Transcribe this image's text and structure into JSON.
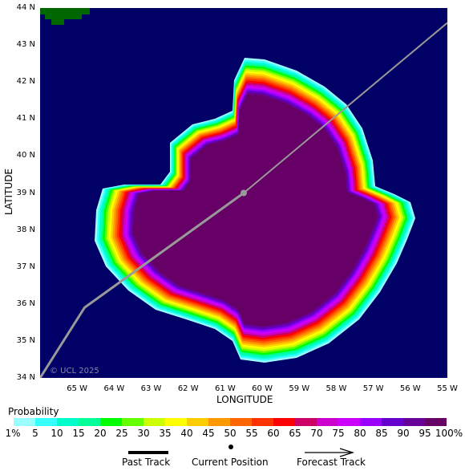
{
  "map": {
    "lat_ticks": [
      "44 N",
      "43 N",
      "42 N",
      "41 N",
      "40 N",
      "39 N",
      "38 N",
      "37 N",
      "36 N",
      "35 N",
      "34 N"
    ],
    "lon_ticks": [
      "65 W",
      "64 W",
      "63 W",
      "62 W",
      "61 W",
      "60 W",
      "59 W",
      "58 W",
      "57 W",
      "56 W",
      "55 W"
    ],
    "ylabel": "LATITUDE",
    "xlabel": "LONGITUDE",
    "watermark": "© UCL 2025",
    "colors": {
      "ocean": "#000066",
      "land": "#006600",
      "track": "#999999"
    },
    "lat_range": [
      34,
      44
    ],
    "lon_range": [
      -66,
      -55
    ]
  },
  "track": {
    "past": [
      [
        -66,
        34
      ],
      [
        -64.8,
        35.9
      ],
      [
        -60.5,
        39.0
      ]
    ],
    "forecast": [
      [
        -60.5,
        39.0
      ],
      [
        -55,
        43.6
      ]
    ],
    "current_position": [
      -60.5,
      39.0
    ]
  },
  "legend": {
    "title": "Probability",
    "labels": [
      "1%",
      "5",
      "10",
      "15",
      "20",
      "25",
      "30",
      "35",
      "40",
      "45",
      "50",
      "55",
      "60",
      "65",
      "70",
      "75",
      "80",
      "85",
      "90",
      "95",
      "100%"
    ],
    "colors": [
      "#99ffff",
      "#33ffff",
      "#00ffcc",
      "#00ff99",
      "#00ff00",
      "#66ff00",
      "#ccff00",
      "#ffff00",
      "#ffcc00",
      "#ff9900",
      "#ff6600",
      "#ff3300",
      "#ff0000",
      "#cc0066",
      "#cc00cc",
      "#cc00ff",
      "#9900ff",
      "#6600cc",
      "#660099",
      "#660066"
    ],
    "keys": {
      "past_track": "Past Track",
      "current_position": "Current Position",
      "forecast_track": "Forecast Track"
    }
  }
}
